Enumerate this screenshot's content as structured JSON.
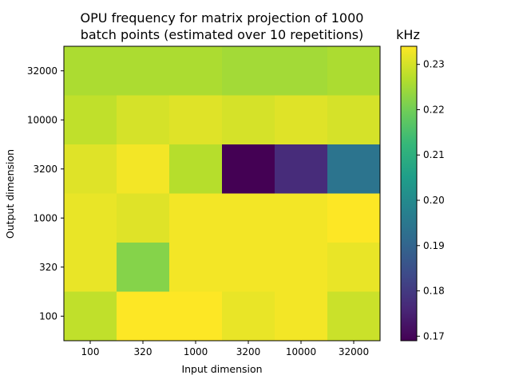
{
  "chart_data": {
    "type": "heatmap",
    "title": [
      "OPU frequency for matrix projection of 1000",
      "batch points (estimated over 10 repetitions)"
    ],
    "xlabel": "Input dimension",
    "ylabel": "Output dimension",
    "x_categories": [
      "100",
      "320",
      "1000",
      "3200",
      "10000",
      "32000"
    ],
    "y_categories": [
      "32000",
      "10000",
      "3200",
      "1000",
      "320",
      "100"
    ],
    "values": [
      [
        0.226,
        0.226,
        0.226,
        0.225,
        0.225,
        0.226
      ],
      [
        0.228,
        0.23,
        0.231,
        0.23,
        0.231,
        0.23
      ],
      [
        0.231,
        0.233,
        0.227,
        0.169,
        0.177,
        0.194
      ],
      [
        0.232,
        0.231,
        0.233,
        0.233,
        0.233,
        0.234
      ],
      [
        0.232,
        0.222,
        0.233,
        0.233,
        0.233,
        0.232
      ],
      [
        0.228,
        0.234,
        0.234,
        0.232,
        0.233,
        0.229
      ]
    ],
    "colorbar": {
      "label": "kHz",
      "min": 0.169,
      "max": 0.234,
      "ticks": [
        "0.17",
        "0.18",
        "0.19",
        "0.20",
        "0.21",
        "0.22",
        "0.23"
      ],
      "colormap": "viridis"
    }
  }
}
